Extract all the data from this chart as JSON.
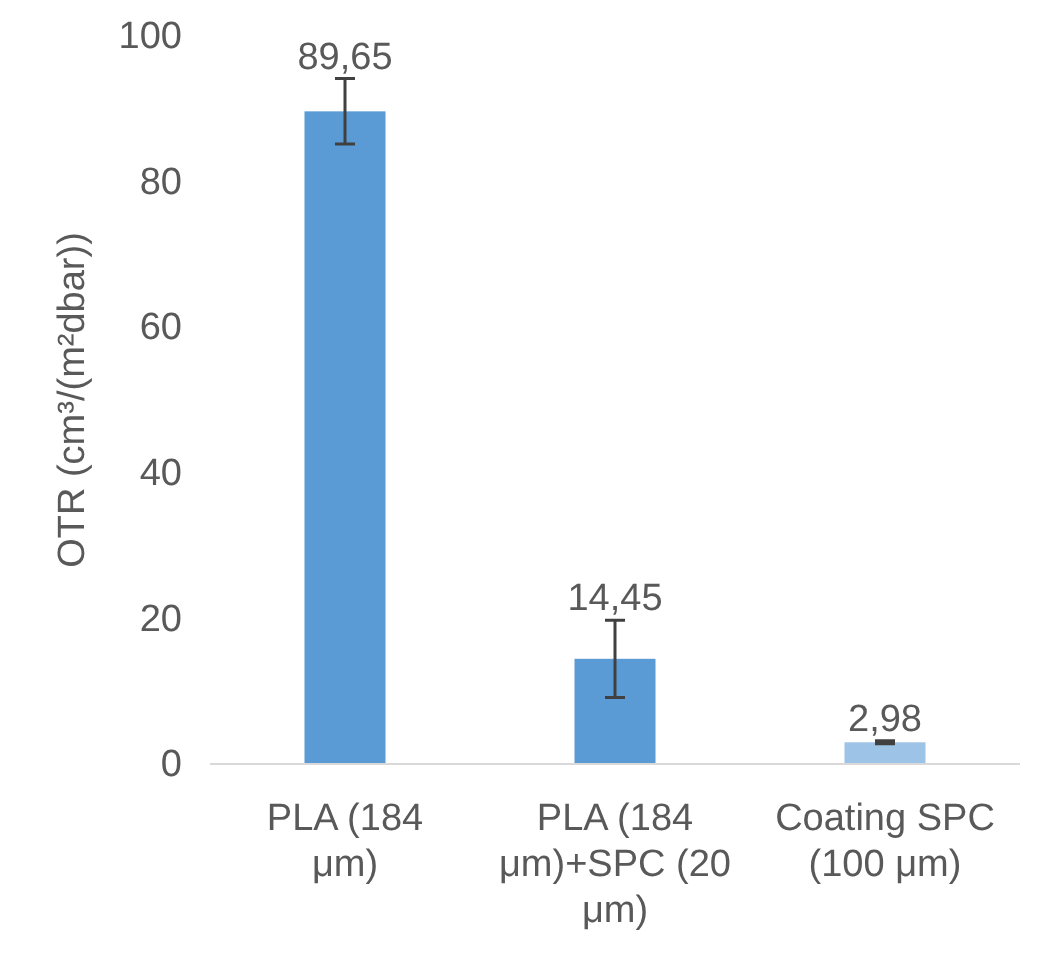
{
  "chart_data": {
    "type": "bar",
    "ylabel": "OTR (cm³/(m²dbar))",
    "categories": [
      "PLA (184 μm)",
      "PLA (184 μm)+SPC (20 μm)",
      "Coating SPC (100 μm)"
    ],
    "values": [
      89.65,
      14.45,
      2.98
    ],
    "colors": [
      "#5b9bd5",
      "#5b9bd5",
      "#9dc3e6"
    ],
    "errors": [
      4.5,
      5.3,
      0.2
    ],
    "value_labels": [
      "89,65",
      "14,45",
      "2,98"
    ],
    "ylim": [
      0,
      100
    ],
    "yticks": [
      0,
      20,
      40,
      60,
      80,
      100
    ],
    "grid": false
  }
}
